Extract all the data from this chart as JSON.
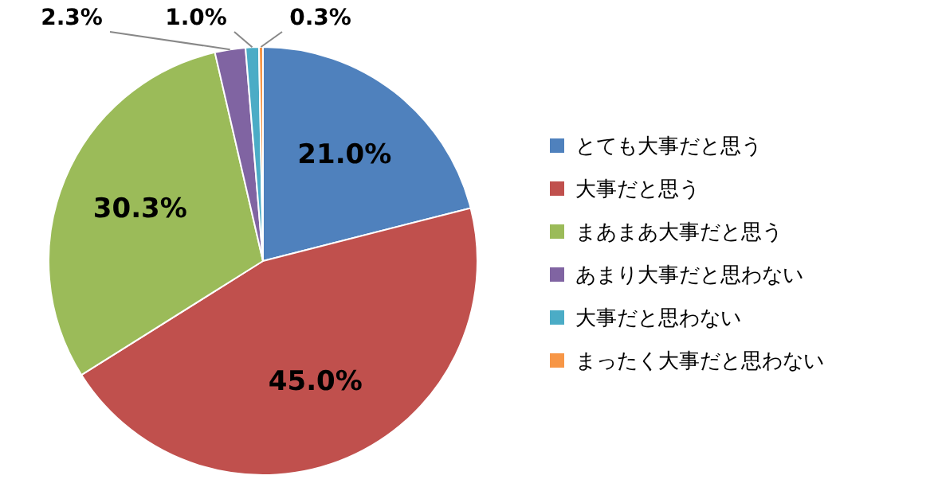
{
  "chart_data": {
    "type": "pie",
    "categories": [
      "とても大事だと思う",
      "大事だと思う",
      "まあまあ大事だと思う",
      "あまり大事だと思わない",
      "大事だと思わない",
      "まったく大事だと思わない"
    ],
    "values": [
      21.0,
      45.0,
      30.3,
      2.3,
      1.0,
      0.3
    ],
    "value_labels": [
      "21.0%",
      "45.0%",
      "30.3%",
      "2.3%",
      "1.0%",
      "0.3%"
    ],
    "colors": [
      "#4f81bd",
      "#c0504d",
      "#9bbb59",
      "#8064a2",
      "#4bacc6",
      "#f79646"
    ],
    "legend": "right"
  }
}
